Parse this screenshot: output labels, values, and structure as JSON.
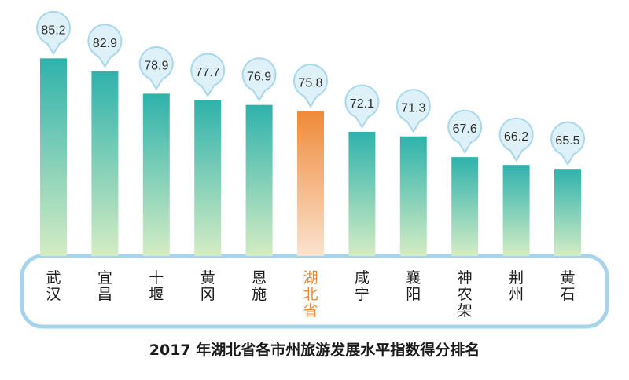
{
  "colors": {
    "bar_top": "#2fb2ac",
    "bar_bottom": "#d4ecc4",
    "highlight_top": "#ef8a3a",
    "highlight_bottom": "#fbe3cf",
    "highlight_text": "#ef8a3a",
    "label_text": "#1a1a1a",
    "bubble_fill": "#dff1f8",
    "bubble_stroke": "#a9d7ea",
    "panel_fill": "#ffffff",
    "panel_stroke": "#a7d4ea"
  },
  "chart_data": {
    "type": "bar",
    "title": "2017 年湖北省各市州旅游发展水平指数得分排名",
    "categories": [
      "武汉",
      "宜昌",
      "十堰",
      "黄冈",
      "恩施",
      "湖北省",
      "咸宁",
      "襄阳",
      "神农架",
      "荆州",
      "黄石"
    ],
    "values": [
      85.2,
      82.9,
      78.9,
      77.7,
      76.9,
      75.8,
      72.1,
      71.3,
      67.6,
      66.2,
      65.5
    ],
    "value_labels": [
      "85.2",
      "82.9",
      "78.9",
      "77.7",
      "76.9",
      "75.8",
      "72.1",
      "71.3",
      "67.6",
      "66.2",
      "65.5"
    ],
    "highlight": "湖北省",
    "ylim": [
      50,
      90
    ],
    "grid": false,
    "legend": "none"
  }
}
